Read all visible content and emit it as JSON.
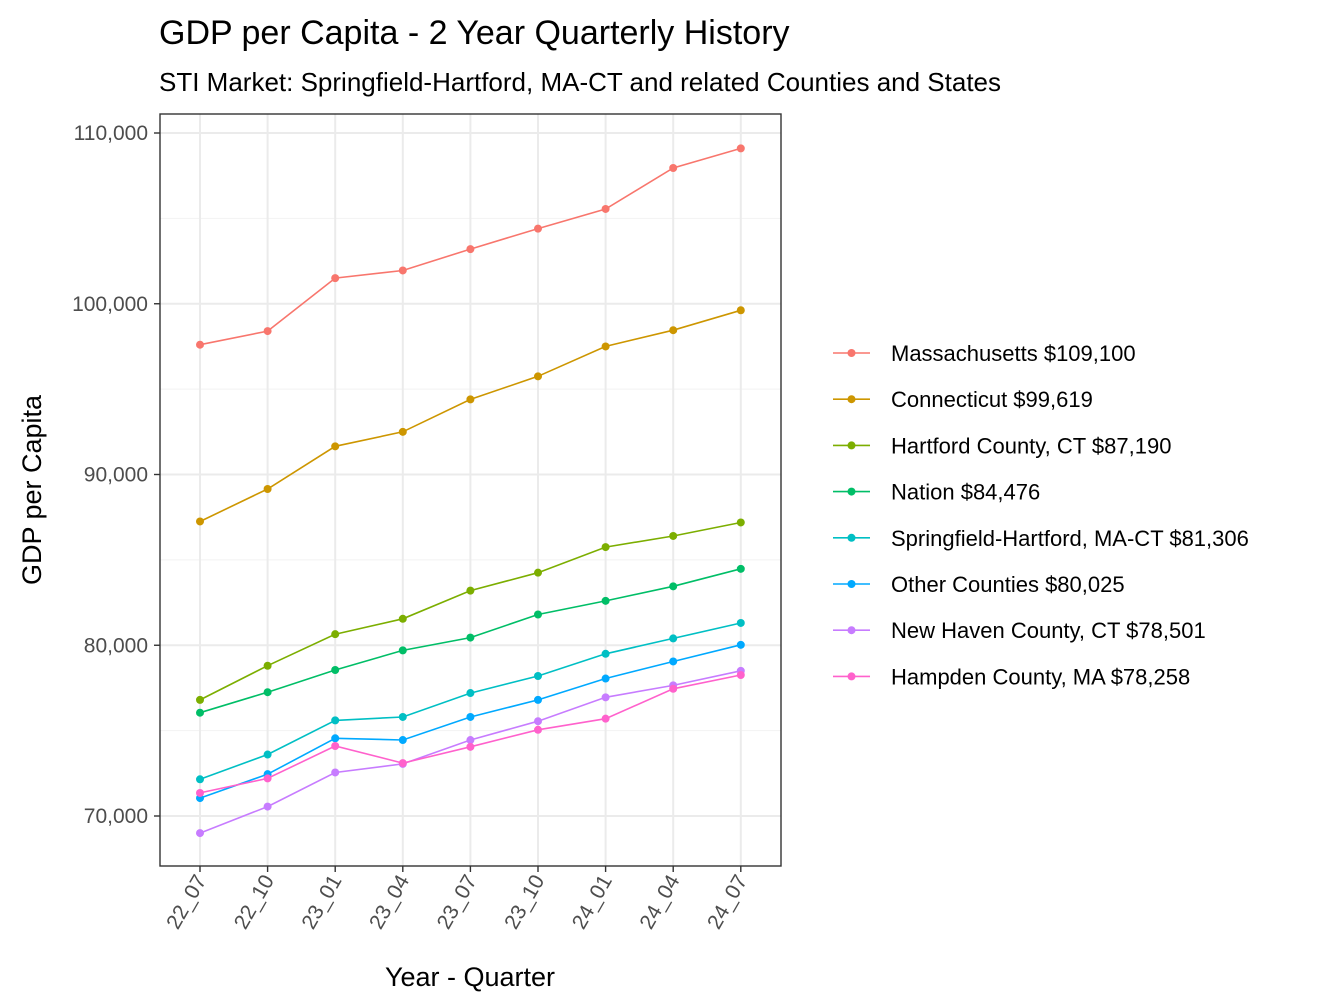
{
  "chart_data": {
    "type": "line",
    "title": "GDP per Capita - 2 Year Quarterly History",
    "subtitle": "STI Market: Springfield-Hartford, MA-CT and related Counties and States",
    "xlabel": "Year - Quarter",
    "ylabel": "GDP per Capita",
    "categories": [
      "22_07",
      "22_10",
      "23_01",
      "23_04",
      "23_07",
      "23_10",
      "24_01",
      "24_04",
      "24_07"
    ],
    "y_ticks": [
      {
        "value": 70000,
        "label": "70,000"
      },
      {
        "value": 80000,
        "label": "80,000"
      },
      {
        "value": 90000,
        "label": "90,000"
      },
      {
        "value": 100000,
        "label": "100,000"
      },
      {
        "value": 110000,
        "label": "110,000"
      }
    ],
    "ylim": [
      67000,
      110900
    ],
    "grid": true,
    "legend_position": "right",
    "series": [
      {
        "name": "Massachusetts $109,100",
        "color": "#F8766D",
        "values": [
          97600,
          98400,
          101500,
          101950,
          103200,
          104400,
          105550,
          107950,
          109100
        ]
      },
      {
        "name": "Connecticut $99,619",
        "color": "#CD9600",
        "values": [
          87250,
          89150,
          91650,
          92500,
          94400,
          95750,
          97500,
          98450,
          99619
        ]
      },
      {
        "name": "Hartford County, CT $87,190",
        "color": "#7CAE00",
        "values": [
          76800,
          78800,
          80650,
          81550,
          83200,
          84250,
          85750,
          86400,
          87190
        ]
      },
      {
        "name": "Nation $84,476",
        "color": "#00BE67",
        "values": [
          76050,
          77250,
          78550,
          79700,
          80450,
          81800,
          82600,
          83450,
          84476
        ]
      },
      {
        "name": "Springfield-Hartford, MA-CT $81,306",
        "color": "#00BFC4",
        "values": [
          72150,
          73600,
          75600,
          75800,
          77200,
          78200,
          79500,
          80400,
          81306
        ]
      },
      {
        "name": "Other Counties $80,025",
        "color": "#00A9FF",
        "values": [
          71050,
          72450,
          74550,
          74450,
          75800,
          76800,
          78050,
          79050,
          80025
        ]
      },
      {
        "name": "New Haven County, CT $78,501",
        "color": "#C77CFF",
        "values": [
          69000,
          70550,
          72550,
          73050,
          74450,
          75550,
          76950,
          77650,
          78501
        ]
      },
      {
        "name": "Hampden County, MA $78,258",
        "color": "#FF61CC",
        "values": [
          71350,
          72200,
          74100,
          73100,
          74050,
          75050,
          75700,
          77450,
          78258
        ]
      }
    ]
  }
}
